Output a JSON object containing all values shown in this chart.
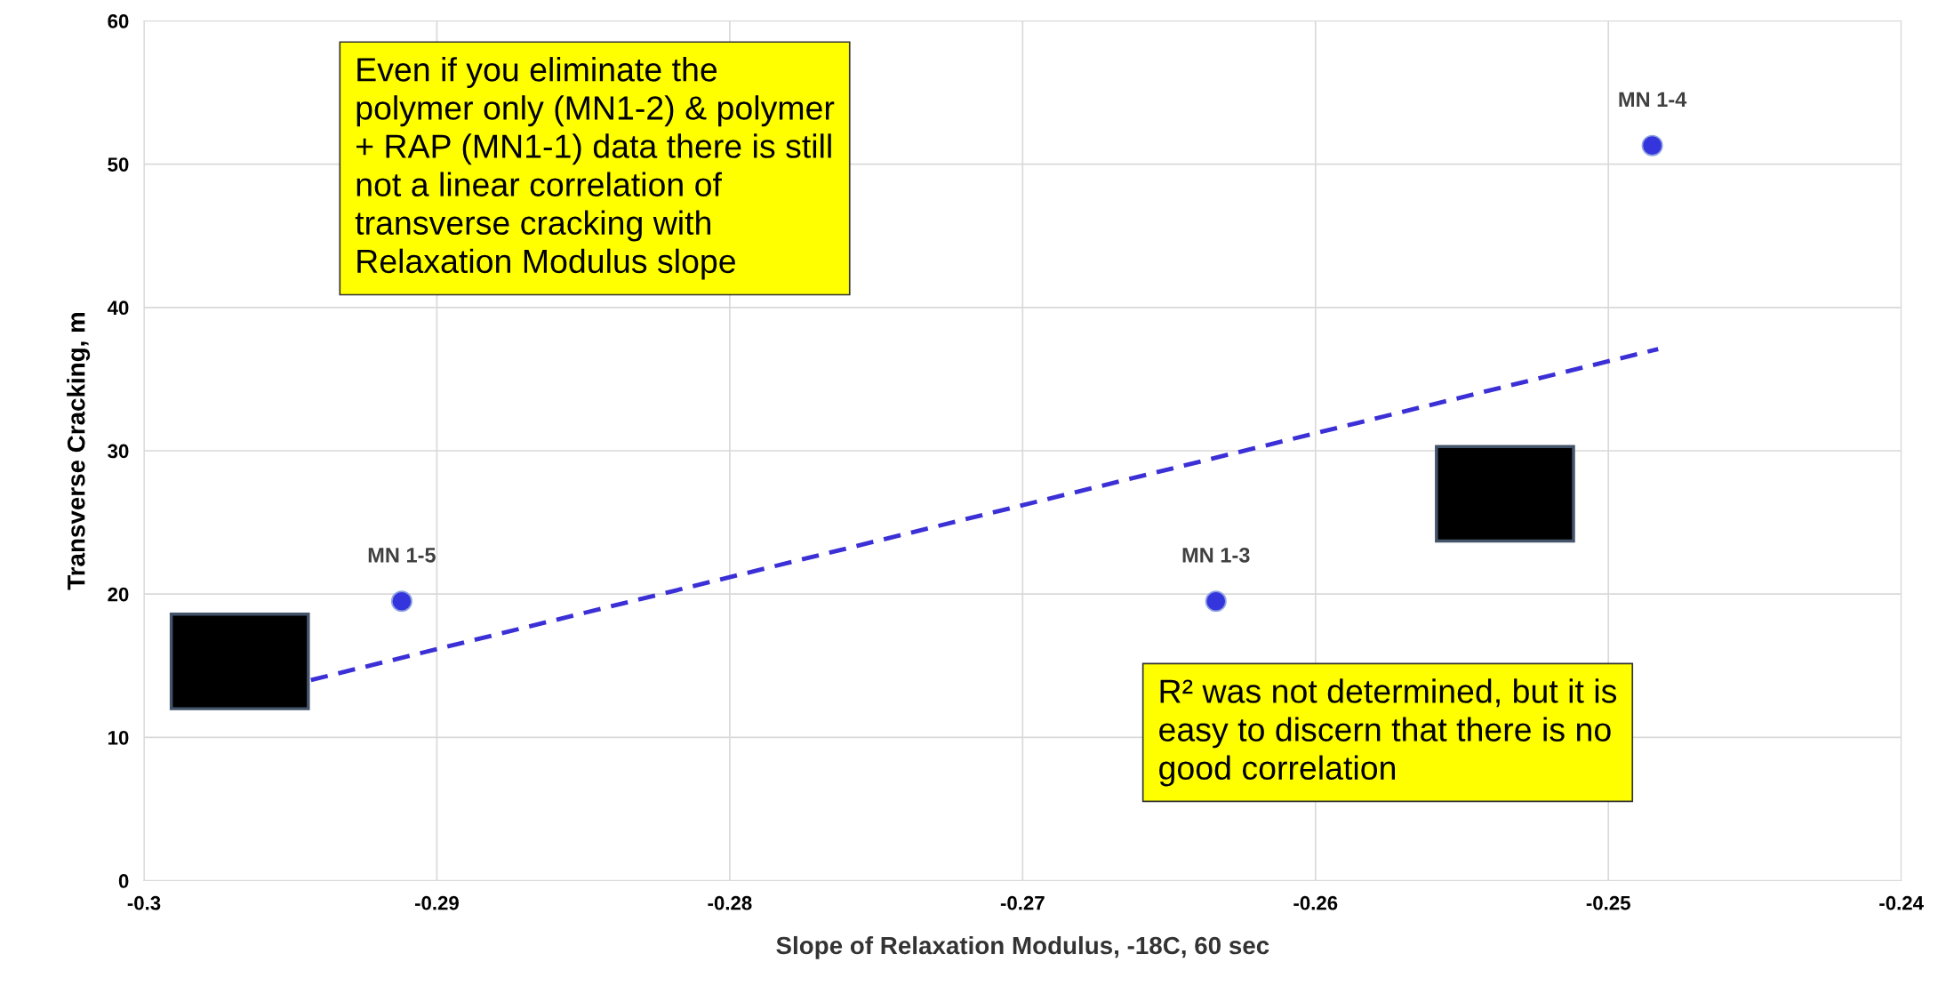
{
  "chart_data": {
    "type": "scatter",
    "xlabel": "Slope of Relaxation Modulus, -18C, 60 sec",
    "ylabel": "Transverse Cracking, m",
    "x": [
      -0.2912,
      -0.2634,
      -0.2485
    ],
    "series": [
      {
        "color": "#3535dd",
        "values": [
          19.5,
          19.5,
          51.3
        ],
        "marker": "circle"
      },
      {
        "type": "line",
        "color": "#3b2fd6",
        "x": [
          -0.2943,
          -0.2483
        ],
        "values": [
          14.0,
          37.1
        ],
        "line_style": "dashed",
        "marker": "none"
      }
    ],
    "xlim": [
      -0.3,
      -0.24
    ],
    "xticks": [
      -0.3,
      -0.29,
      -0.28,
      -0.27,
      -0.26,
      -0.25,
      -0.24
    ],
    "ylim": [
      0,
      60
    ],
    "yticks": [
      0,
      10,
      20,
      30,
      40,
      50,
      60
    ],
    "grid": true,
    "annotations": [
      {
        "text": "MN 1-5",
        "x": -0.2912,
        "y": 19.5
      },
      {
        "text": "MN 1-3",
        "x": -0.2634,
        "y": 19.5
      },
      {
        "text": "MN 1-4",
        "x": -0.2485,
        "y": 51.3
      },
      "Even if you eliminate the\npolymer only (MN1-2) & polymer\n+ RAP (MN1-1) data there is still\nnot a linear correlation of\ntransverse cracking with\nRelaxation Modulus slope",
      "R² was not determined, but it is\neasy to discern that there is no\ngood correlation"
    ]
  }
}
